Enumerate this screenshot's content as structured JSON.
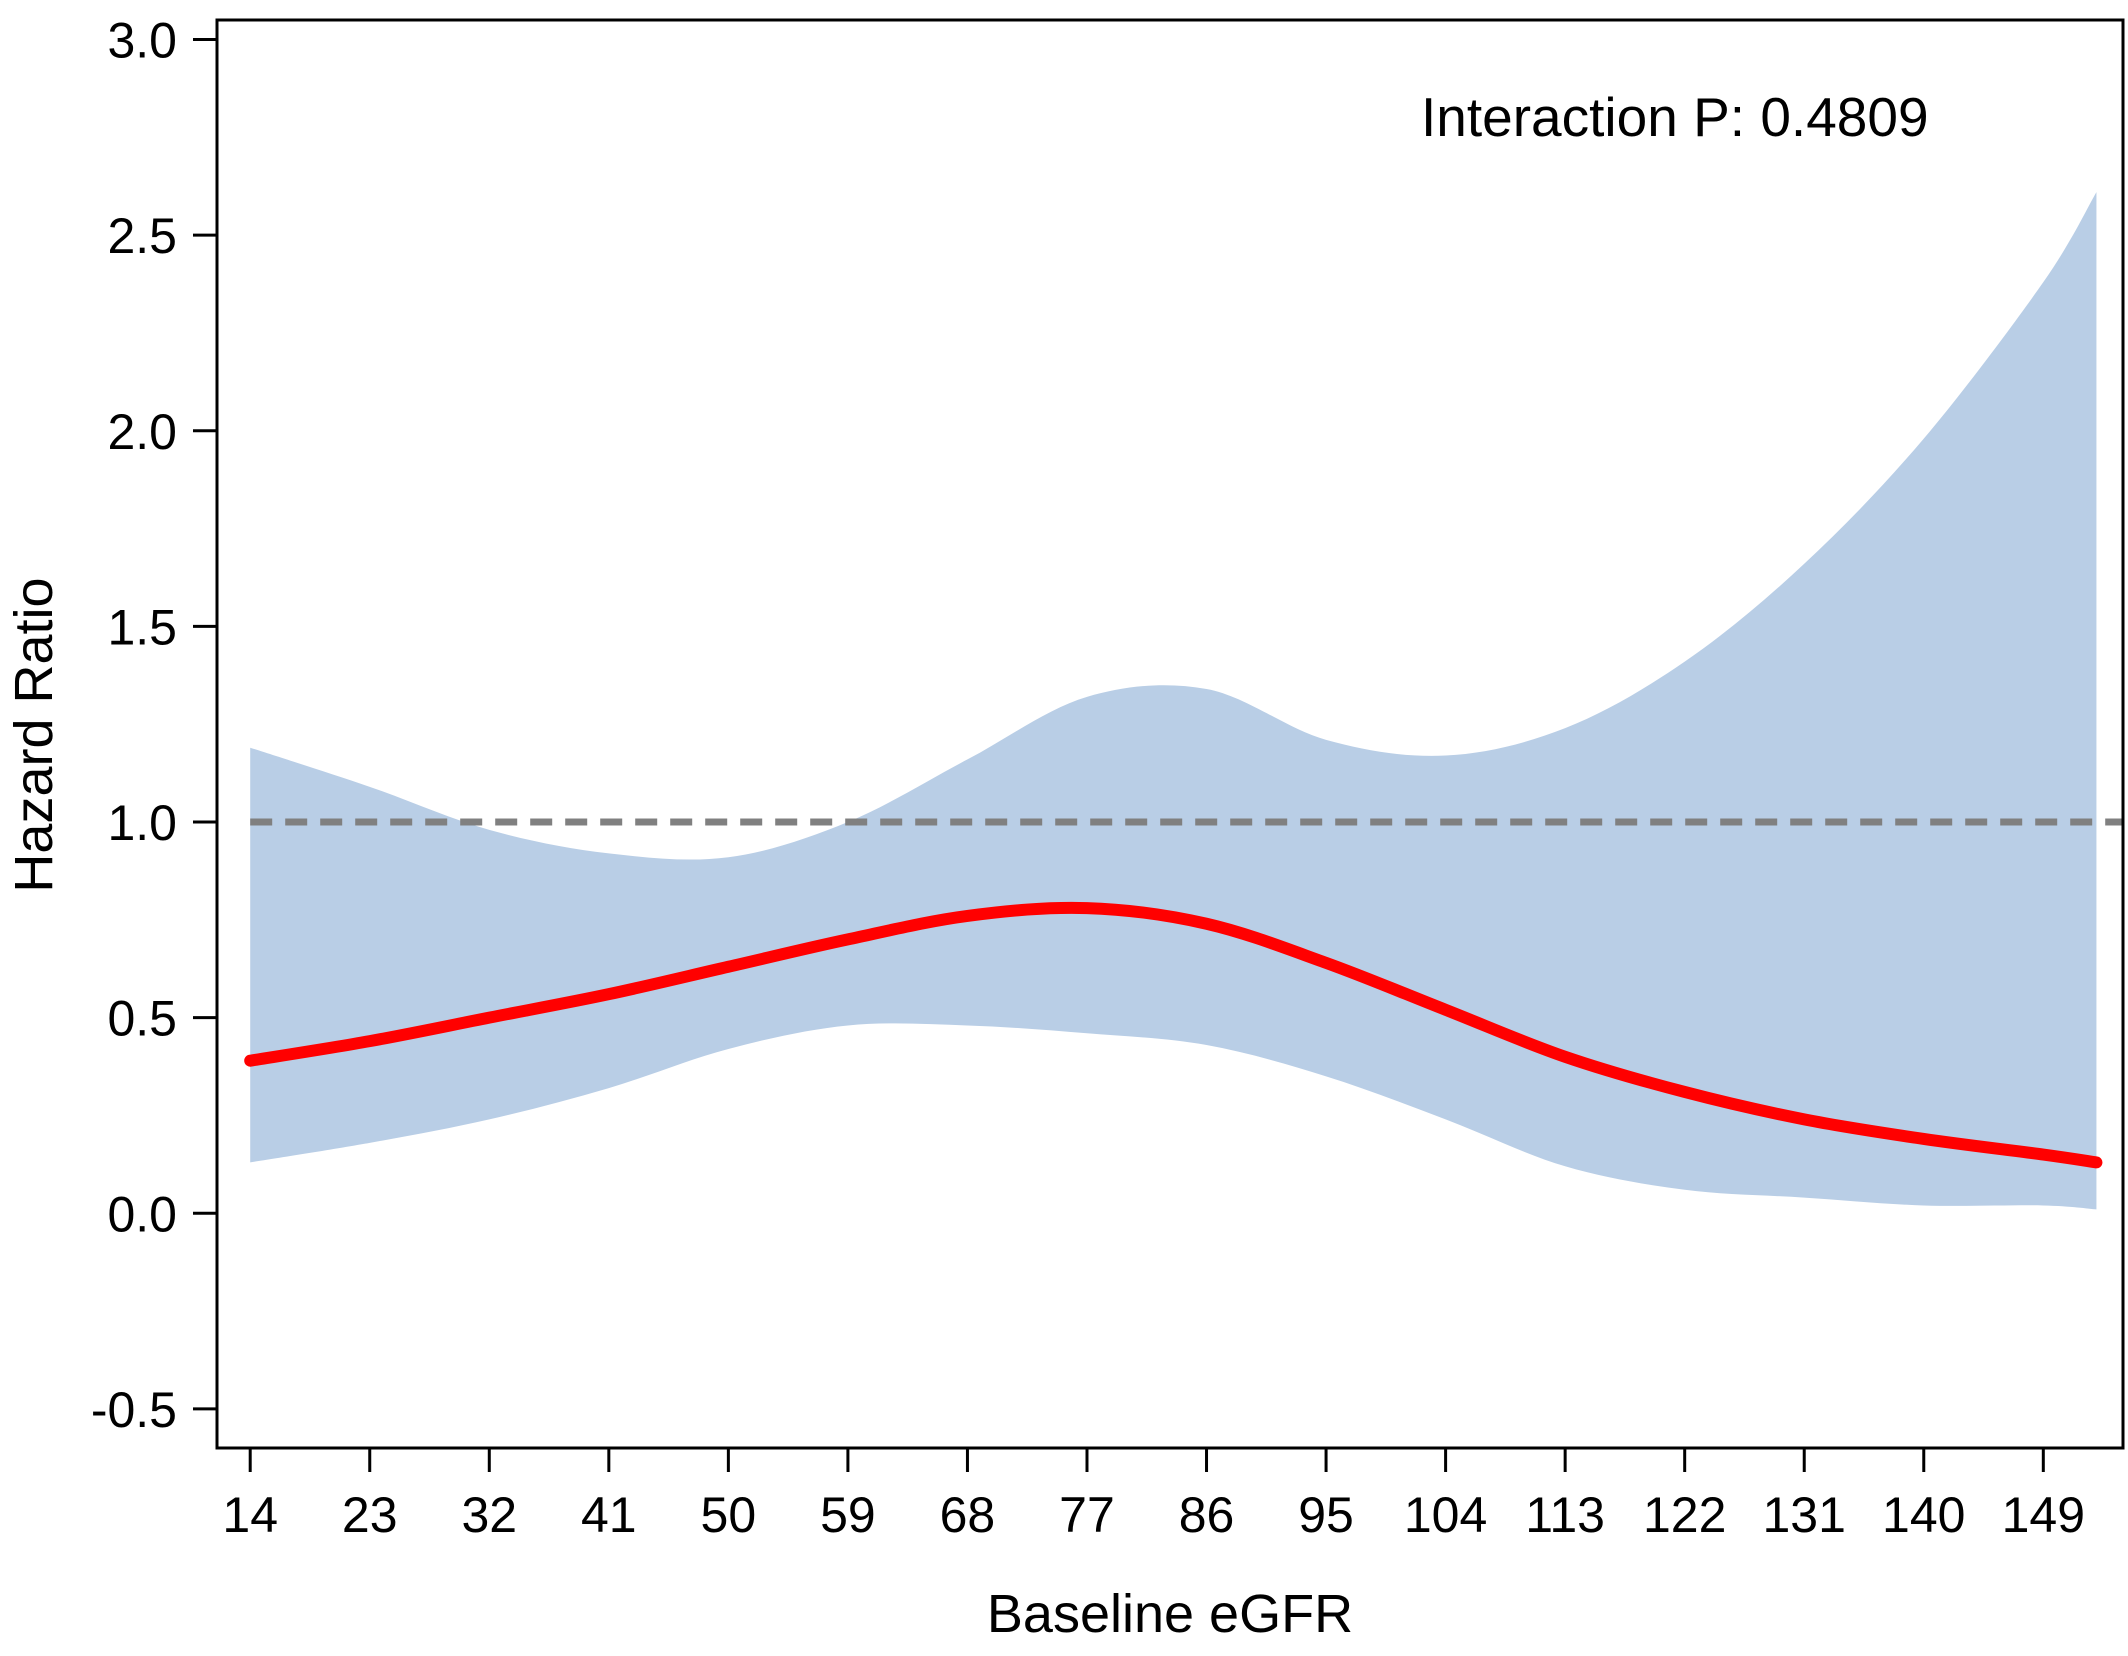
{
  "chart_data": {
    "type": "line",
    "title": "",
    "xlabel": "Baseline eGFR",
    "ylabel": "Hazard Ratio",
    "annotation": "Interaction P: 0.4809",
    "xlim": [
      11.5,
      155
    ],
    "ylim": [
      -0.6,
      3.05
    ],
    "x_ticks": [
      14,
      23,
      32,
      41,
      50,
      59,
      68,
      77,
      86,
      95,
      104,
      113,
      122,
      131,
      140,
      149
    ],
    "y_ticks": [
      -0.5,
      0.0,
      0.5,
      1.0,
      1.5,
      2.0,
      2.5,
      3.0
    ],
    "y_tick_labels": [
      "-0.5",
      "0.0",
      "0.5",
      "1.0",
      "1.5",
      "2.0",
      "2.5",
      "3.0"
    ],
    "grid": false,
    "reference_line": {
      "y": 1.0,
      "style": "dashed",
      "color": "#808080"
    },
    "colors": {
      "line": "#ff0000",
      "band": "#b9cee6"
    },
    "series": [
      {
        "x": [
          14,
          23,
          32,
          41,
          50,
          59,
          68,
          77,
          86,
          95,
          104,
          113,
          122,
          131,
          140,
          149,
          153
        ],
        "values": [
          0.39,
          0.44,
          0.5,
          0.56,
          0.63,
          0.7,
          0.76,
          0.78,
          0.74,
          0.64,
          0.52,
          0.4,
          0.31,
          0.24,
          0.19,
          0.15,
          0.13
        ],
        "lower": [
          0.13,
          0.18,
          0.24,
          0.32,
          0.42,
          0.48,
          0.48,
          0.46,
          0.43,
          0.35,
          0.24,
          0.12,
          0.06,
          0.04,
          0.02,
          0.02,
          0.01
        ],
        "upper": [
          1.19,
          1.09,
          0.98,
          0.92,
          0.91,
          1.0,
          1.16,
          1.32,
          1.34,
          1.21,
          1.17,
          1.24,
          1.41,
          1.66,
          1.98,
          2.38,
          2.61
        ]
      }
    ]
  }
}
